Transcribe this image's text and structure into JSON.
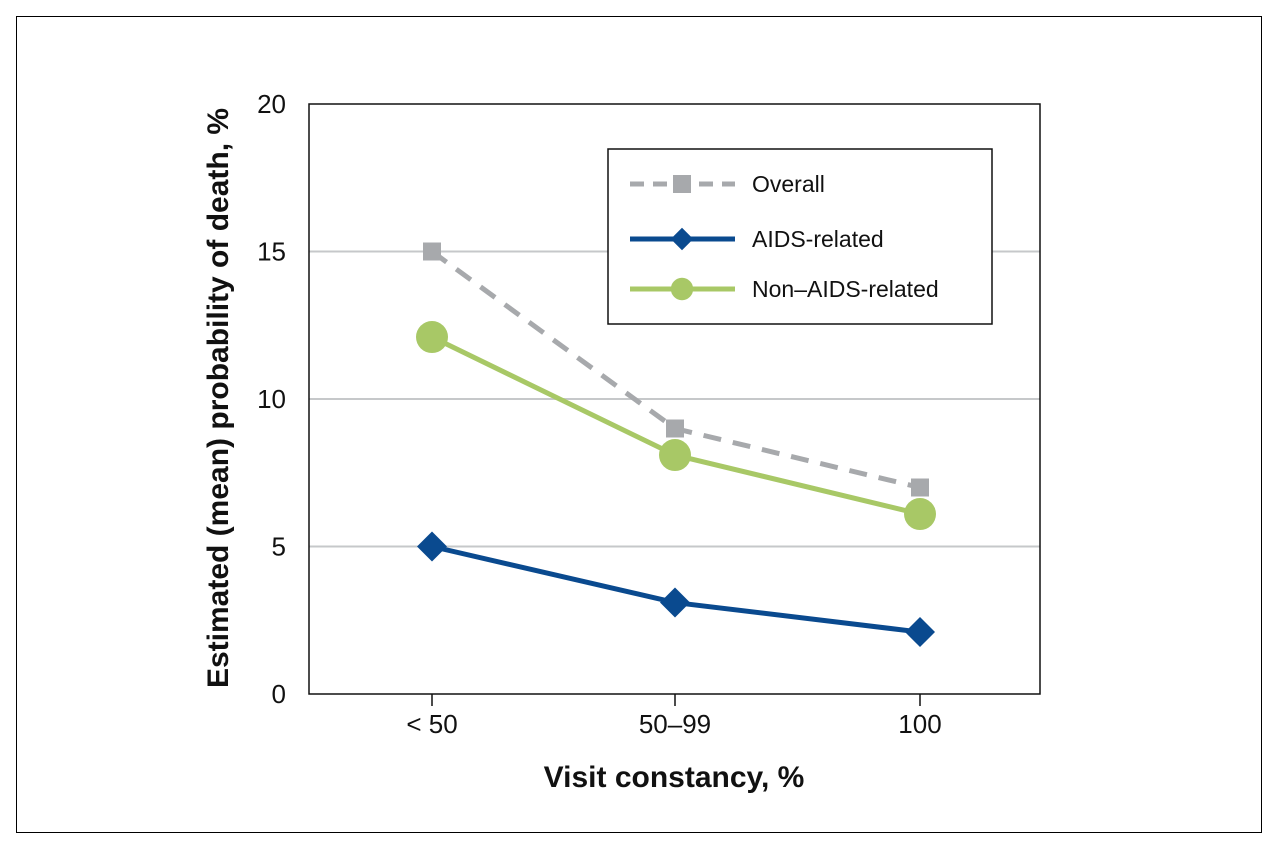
{
  "chart_data": {
    "type": "line",
    "title": "",
    "xlabel": "Visit constancy, %",
    "ylabel": "Estimated (mean) probability of death, %",
    "categories": [
      "< 50",
      "50–99",
      "100"
    ],
    "ylim": [
      0,
      20
    ],
    "yticks": [
      "0",
      "5",
      "10",
      "15",
      "20"
    ],
    "grid": "horizontal",
    "legend_position": "top-right",
    "series": [
      {
        "name": "Overall",
        "values": [
          15,
          9,
          7
        ],
        "color": "#a7a9ac",
        "marker": "square",
        "line_style": "dashed"
      },
      {
        "name": "AIDS-related",
        "values": [
          5,
          3.1,
          2.1
        ],
        "color": "#0a4a8f",
        "marker": "diamond",
        "line_style": "solid"
      },
      {
        "name": "Non–AIDS-related",
        "values": [
          12.1,
          8.1,
          6.1
        ],
        "color": "#a8c866",
        "marker": "circle",
        "line_style": "solid"
      }
    ]
  }
}
